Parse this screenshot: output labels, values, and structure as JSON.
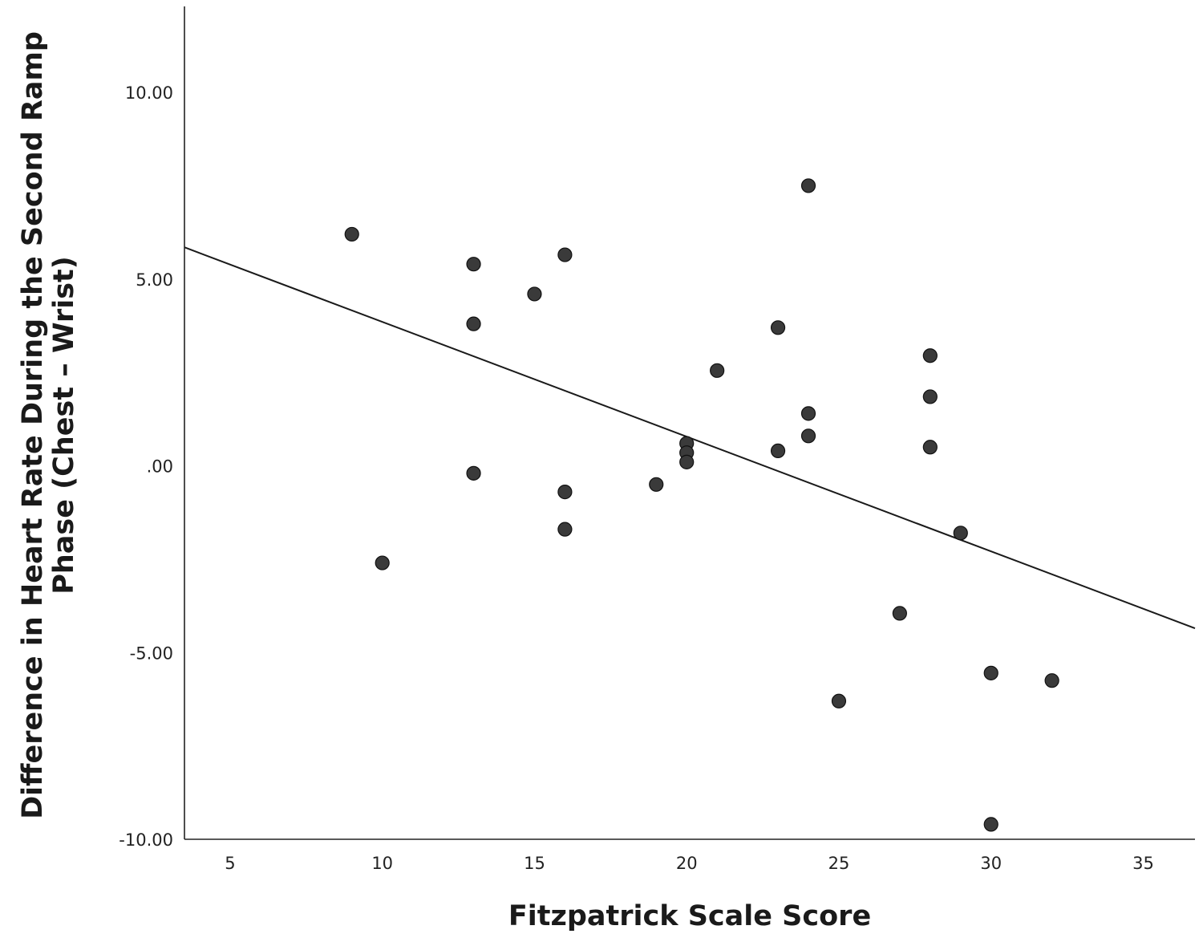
{
  "chart_data": {
    "type": "scatter",
    "title": "",
    "xlabel": "Fitzpatrick Scale Score",
    "ylabel_lines": [
      "Difference in Heart Rate During the Second Ramp",
      "Phase (Chest – Wrist)"
    ],
    "xlim": [
      3.5,
      36.7
    ],
    "ylim": [
      -10,
      12.3
    ],
    "x_ticks": [
      5,
      10,
      15,
      20,
      25,
      30,
      35
    ],
    "x_tick_labels": [
      "5",
      "10",
      "15",
      "20",
      "25",
      "30",
      "35"
    ],
    "y_ticks": [
      10,
      5,
      0,
      -5,
      -10
    ],
    "y_tick_labels": [
      "10.00",
      "5.00",
      ".00",
      "-5.00",
      "-10.00"
    ],
    "grid": false,
    "legend": "none",
    "point_color": "#3a3a3a",
    "line_color": "#1a1a1a",
    "points": [
      {
        "x": 9,
        "y": 6.2
      },
      {
        "x": 10,
        "y": -2.6
      },
      {
        "x": 13,
        "y": 5.4
      },
      {
        "x": 13,
        "y": 3.8
      },
      {
        "x": 13,
        "y": -0.2
      },
      {
        "x": 15,
        "y": 4.6
      },
      {
        "x": 16,
        "y": 5.65
      },
      {
        "x": 16,
        "y": -0.7
      },
      {
        "x": 16,
        "y": -1.7
      },
      {
        "x": 19,
        "y": -0.5
      },
      {
        "x": 20,
        "y": 0.6
      },
      {
        "x": 20,
        "y": 0.35
      },
      {
        "x": 20,
        "y": 0.1
      },
      {
        "x": 21,
        "y": 2.55
      },
      {
        "x": 23,
        "y": 3.7
      },
      {
        "x": 23,
        "y": 0.4
      },
      {
        "x": 24,
        "y": 7.5
      },
      {
        "x": 24,
        "y": 1.4
      },
      {
        "x": 24,
        "y": 0.8
      },
      {
        "x": 25,
        "y": -6.3
      },
      {
        "x": 27,
        "y": -3.95
      },
      {
        "x": 28,
        "y": 2.95
      },
      {
        "x": 28,
        "y": 1.85
      },
      {
        "x": 28,
        "y": 0.5
      },
      {
        "x": 29,
        "y": -1.8
      },
      {
        "x": 30,
        "y": -5.55
      },
      {
        "x": 30,
        "y": -9.6
      },
      {
        "x": 32,
        "y": -5.75
      }
    ],
    "fit_line": {
      "x": [
        3.5,
        36.7
      ],
      "y": [
        5.85,
        -4.35
      ]
    }
  }
}
